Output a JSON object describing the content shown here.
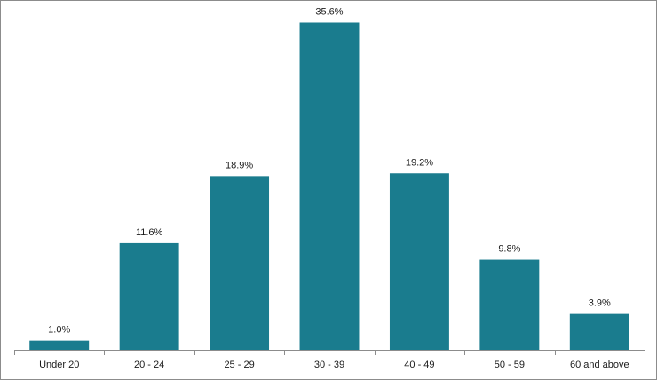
{
  "chart_data": {
    "type": "bar",
    "title": "",
    "xlabel": "",
    "ylabel": "",
    "categories": [
      "Under 20",
      "20 - 24",
      "25 - 29",
      "30 - 39",
      "40 - 49",
      "50 - 59",
      "60 and above"
    ],
    "values": [
      1.0,
      11.6,
      18.9,
      35.6,
      19.2,
      9.8,
      3.9
    ],
    "data_labels": [
      "1.0%",
      "11.6%",
      "18.9%",
      "35.6%",
      "19.2%",
      "9.8%",
      "3.9%"
    ],
    "value_unit": "%",
    "ylim": [
      0,
      37
    ],
    "y_axis_visible": false,
    "grid": false,
    "legend": "none",
    "bar_color": "#1a7c8e",
    "axis_color": "#8c8c8c"
  }
}
